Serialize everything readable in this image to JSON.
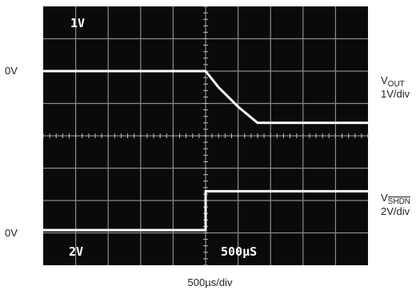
{
  "chart_data": {
    "type": "line",
    "title": "",
    "xlabel": "500µs/div",
    "ylabel": "",
    "x_unit": "ms",
    "xlim": [
      -2.5,
      2.5
    ],
    "grid": true,
    "divisions": {
      "x": 10,
      "y": 8
    },
    "screen_labels": {
      "top_left": "1V",
      "bottom_left": "2V",
      "bottom_center": "500µS"
    },
    "left_labels": {
      "upper_zero": "0V",
      "lower_zero": "0V"
    },
    "series": [
      {
        "label_main": "V",
        "label_sub": "OUT",
        "scale": "1V/div",
        "color": "#ffffff",
        "unit": "V",
        "x": [
          -2.5,
          0.0,
          0.2,
          0.5,
          0.8,
          2.5
        ],
        "y": [
          0.0,
          0.0,
          -0.5,
          -1.1,
          -1.6,
          -1.6
        ]
      },
      {
        "label_main": "V",
        "label_sub": "SHDN",
        "scale": "2V/div",
        "color": "#ffffff",
        "unit": "V",
        "x": [
          -2.5,
          0.0,
          0.0,
          2.5
        ],
        "y": [
          0.0,
          0.0,
          2.4,
          2.4
        ]
      }
    ]
  }
}
